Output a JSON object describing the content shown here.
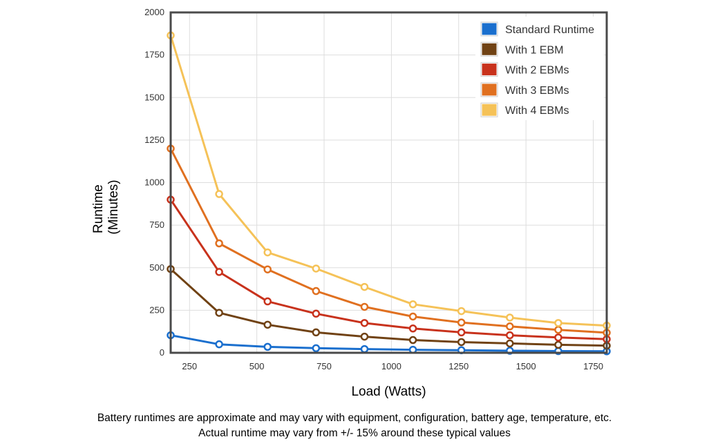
{
  "chart_data": {
    "type": "line",
    "xlabel": "Load (Watts)",
    "ylabel_lines": [
      "Runtime",
      "(Minutes)"
    ],
    "xlim": [
      180,
      1800
    ],
    "ylim": [
      0,
      2000
    ],
    "x_ticks": [
      250,
      500,
      750,
      1000,
      1250,
      1500,
      1750
    ],
    "y_ticks": [
      0,
      250,
      500,
      750,
      1000,
      1250,
      1500,
      1750,
      2000
    ],
    "grid": true,
    "legend_position": "top-right",
    "x": [
      180,
      360,
      540,
      720,
      900,
      1080,
      1260,
      1440,
      1620,
      1800
    ],
    "series": [
      {
        "name": "Standard Runtime",
        "color": "#1a6fce",
        "values": [
          103,
          50,
          35,
          27,
          22,
          18,
          15,
          12,
          10,
          9
        ]
      },
      {
        "name": "With 1 EBM",
        "color": "#704214",
        "values": [
          492,
          235,
          165,
          120,
          95,
          75,
          63,
          55,
          47,
          42
        ]
      },
      {
        "name": "With 2 EBMs",
        "color": "#c8321c",
        "values": [
          900,
          475,
          302,
          230,
          175,
          143,
          120,
          103,
          90,
          80
        ]
      },
      {
        "name": "With 3 EBMs",
        "color": "#e07020",
        "values": [
          1200,
          643,
          490,
          363,
          270,
          213,
          178,
          155,
          135,
          118
        ]
      },
      {
        "name": "With 4 EBMs",
        "color": "#f5c258",
        "values": [
          1865,
          933,
          590,
          495,
          387,
          285,
          245,
          207,
          175,
          160
        ]
      }
    ]
  },
  "footnotes": {
    "line1": "Battery runtimes are approximate and may vary with equipment, configuration, battery age, temperature, etc.",
    "line2": "Actual runtime may vary from +/- 15% around these typical values"
  }
}
